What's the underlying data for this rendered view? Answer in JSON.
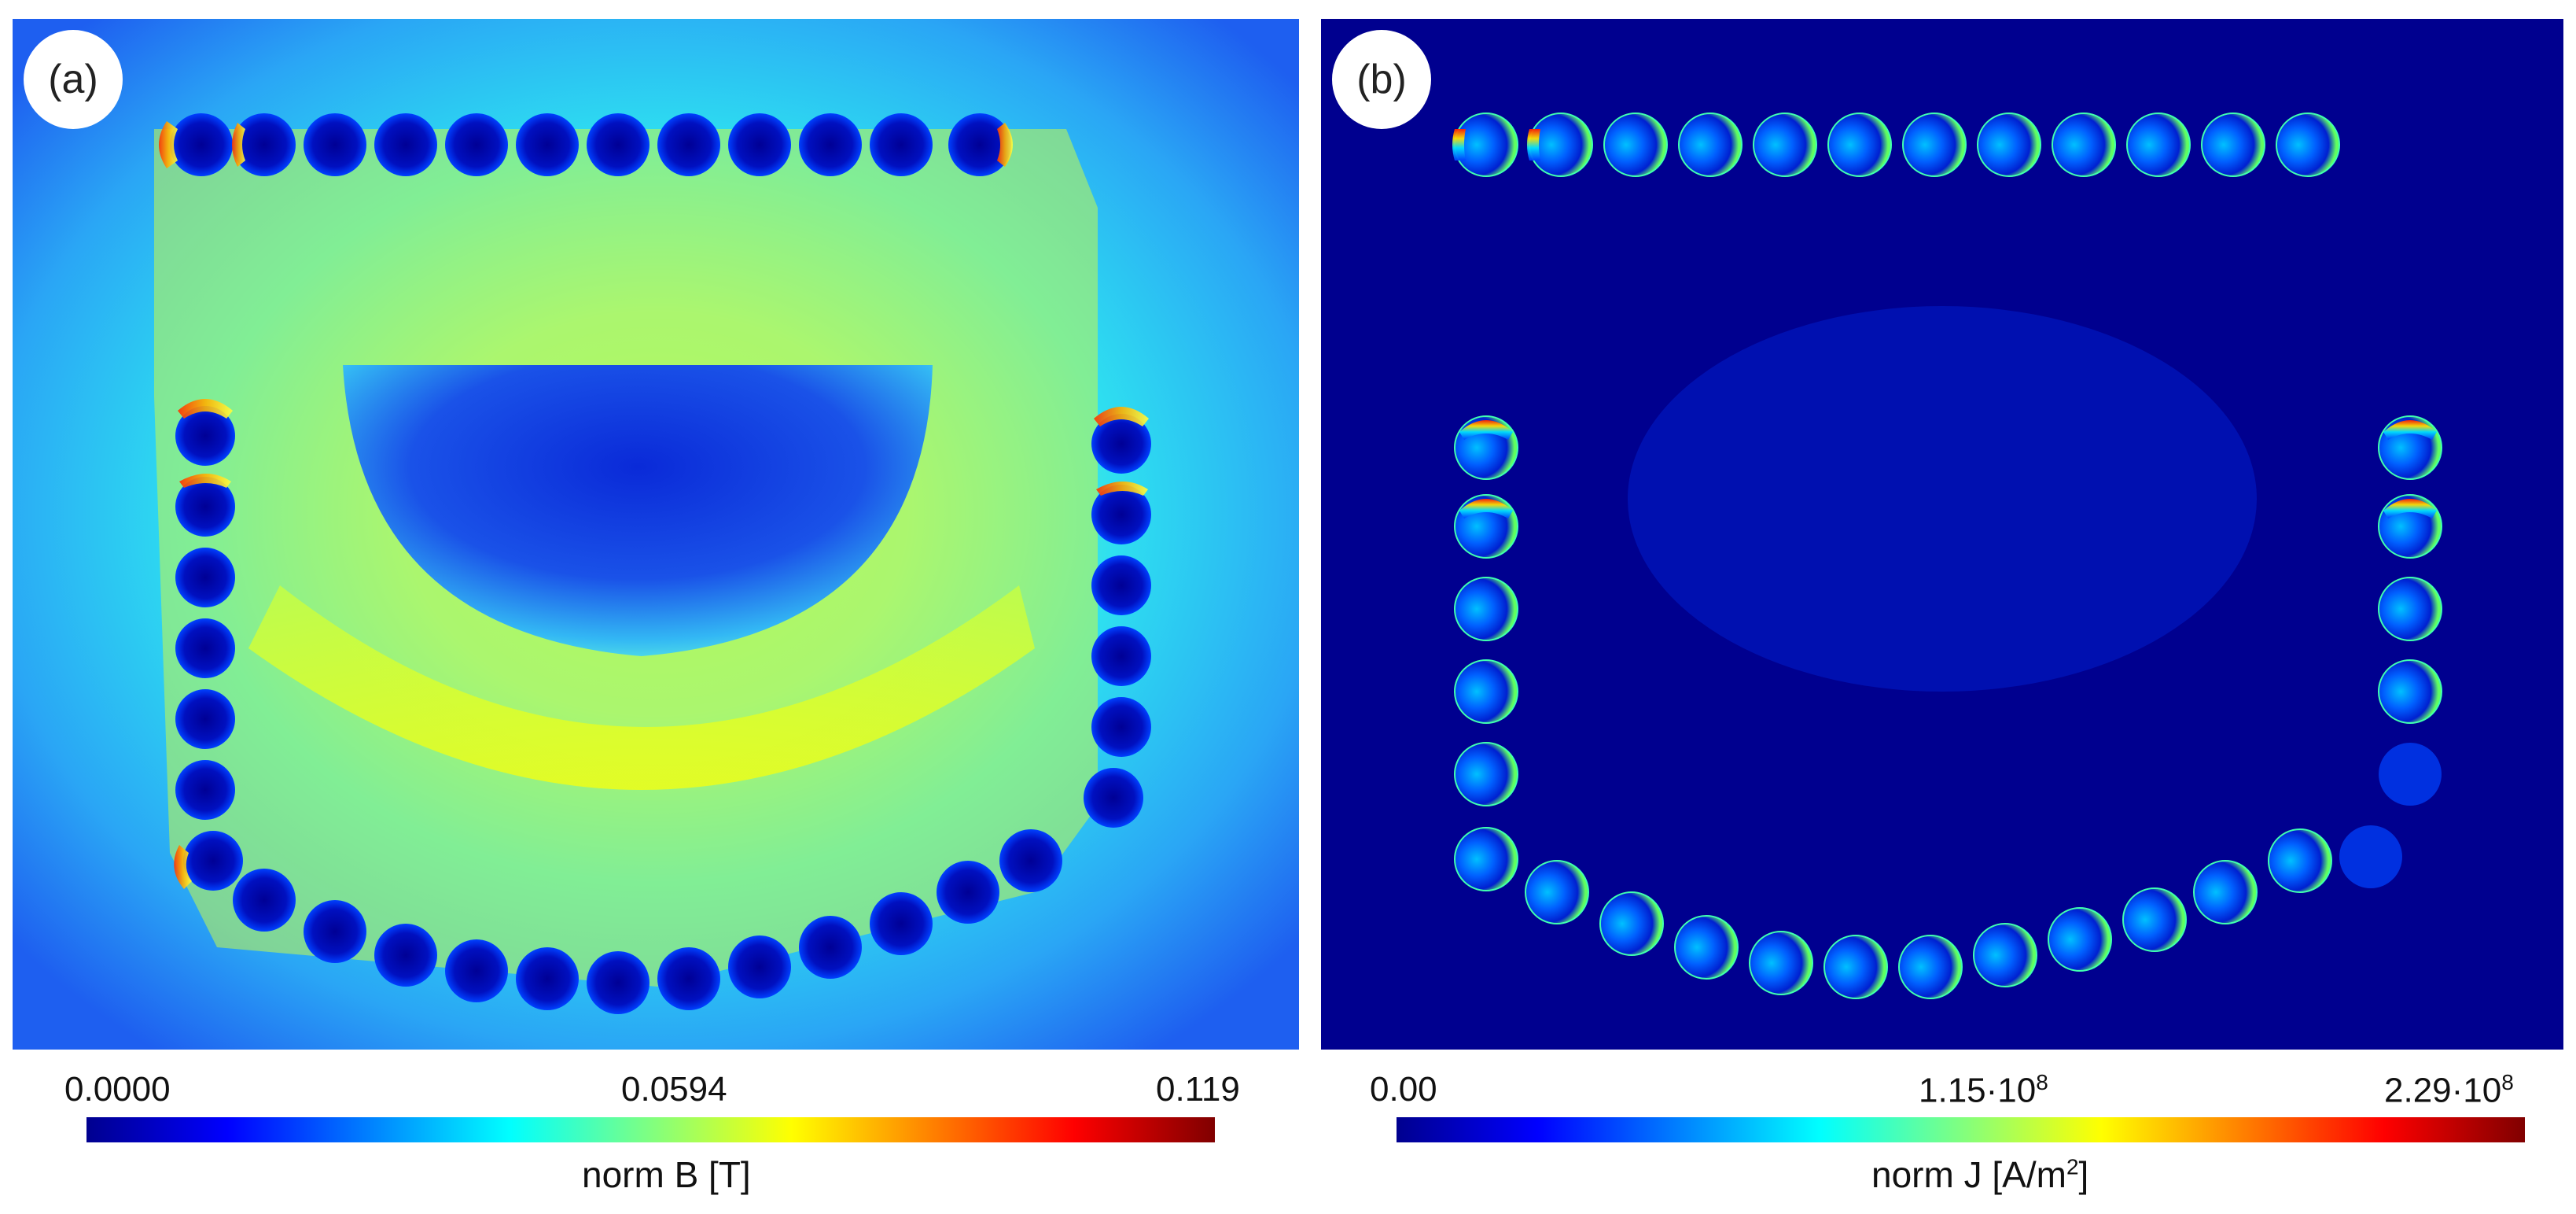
{
  "panel_a": {
    "label": "(a)",
    "colorbar": {
      "ticks": [
        "0.0000",
        "0.0594",
        "0.119"
      ],
      "title": "norm B [T]"
    }
  },
  "panel_b": {
    "label": "(b)",
    "colorbar": {
      "ticks": [
        "0.00",
        "1.15·10",
        "2.29·10"
      ],
      "tick_exponents": [
        "",
        "8",
        "8"
      ],
      "title_main": "norm J [A/m",
      "title_sup": "2",
      "title_end": "]"
    }
  },
  "colormap": [
    "#00008f",
    "#0000ff",
    "#0080ff",
    "#00ffff",
    "#80ff80",
    "#ffff00",
    "#ff8000",
    "#ff0000",
    "#800000"
  ]
}
